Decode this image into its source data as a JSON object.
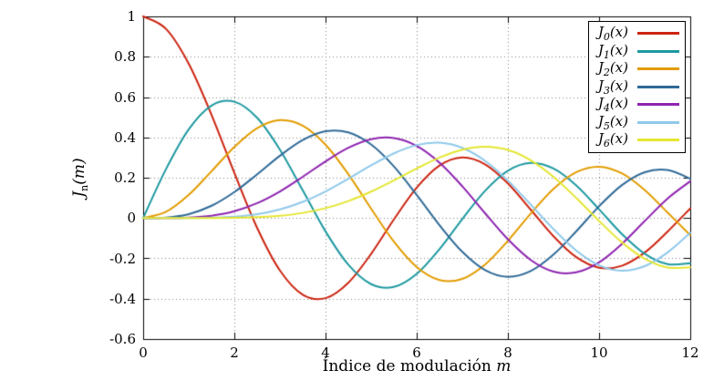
{
  "chart_data": {
    "type": "line",
    "title": "",
    "xlabel": "Índice de modulación m",
    "ylabel": "J_n(m)",
    "xlim": [
      0,
      12
    ],
    "ylim": [
      -0.6,
      1
    ],
    "grid": "dotted",
    "legend_position": "top-right",
    "xticks": {
      "values": [
        0,
        2,
        4,
        6,
        8,
        10,
        12
      ],
      "labels": [
        "0",
        "2",
        "4",
        "6",
        "8",
        "10",
        "12"
      ]
    },
    "yticks": {
      "values": [
        1,
        0.8,
        0.6,
        0.4,
        0.2,
        0,
        -0.2,
        -0.4,
        -0.6
      ],
      "labels": [
        "1",
        "0.8",
        "0.6",
        "0.4",
        "0.2",
        "0",
        "-0.2",
        "-0.4",
        "-0.6"
      ]
    },
    "x": [
      0,
      0.5,
      1,
      1.5,
      2,
      2.5,
      3,
      3.5,
      4,
      4.5,
      5,
      5.5,
      6,
      6.5,
      7,
      7.5,
      8,
      8.5,
      9,
      9.5,
      10,
      10.5,
      11,
      11.5,
      12
    ],
    "series": [
      {
        "name": "J_0(x)",
        "base": "J",
        "sub": "0",
        "rest": "(x)",
        "color": "#cc2512",
        "values": [
          1,
          0.9385,
          0.7652,
          0.5118,
          0.2239,
          -0.0484,
          -0.2601,
          -0.3801,
          -0.3971,
          -0.3205,
          -0.1776,
          -0.0068,
          0.1506,
          0.2601,
          0.3001,
          0.2663,
          0.1717,
          0.0419,
          -0.0903,
          -0.1939,
          -0.2459,
          -0.2366,
          -0.1712,
          -0.0677,
          0.0477
        ]
      },
      {
        "name": "J_1(x)",
        "base": "J",
        "sub": "1",
        "rest": "(x)",
        "color": "#1e99a0",
        "values": [
          0,
          0.2423,
          0.4401,
          0.5579,
          0.5767,
          0.4971,
          0.3391,
          0.1374,
          -0.066,
          -0.2311,
          -0.3276,
          -0.3414,
          -0.2767,
          -0.1538,
          -0.0047,
          0.1352,
          0.2346,
          0.2731,
          0.2453,
          0.1613,
          0.0435,
          -0.0789,
          -0.1768,
          -0.2284,
          -0.2234
        ]
      },
      {
        "name": "J_2(x)",
        "base": "J",
        "sub": "2",
        "rest": "(x)",
        "color": "#e29c00",
        "values": [
          0,
          0.0306,
          0.1149,
          0.2321,
          0.3528,
          0.4461,
          0.4861,
          0.4586,
          0.3641,
          0.2178,
          0.0466,
          -0.1173,
          -0.2429,
          -0.3074,
          -0.3014,
          -0.2303,
          -0.113,
          0.0223,
          0.1448,
          0.2279,
          0.2546,
          0.2216,
          0.139,
          0.0279,
          -0.0849
        ]
      },
      {
        "name": "J_3(x)",
        "base": "J",
        "sub": "3",
        "rest": "(x)",
        "color": "#2f6a97",
        "values": [
          0,
          0.0026,
          0.0196,
          0.061,
          0.1289,
          0.2166,
          0.3091,
          0.3868,
          0.4302,
          0.4247,
          0.3648,
          0.2561,
          0.1148,
          -0.0353,
          -0.1676,
          -0.2581,
          -0.2911,
          -0.2626,
          -0.1809,
          -0.0653,
          0.0584,
          0.1633,
          0.2273,
          0.2381,
          0.1951
        ]
      },
      {
        "name": "J_4(x)",
        "base": "J",
        "sub": "4",
        "rest": "(x)",
        "color": "#8e24b0",
        "values": [
          0,
          0.0002,
          0.0025,
          0.0118,
          0.034,
          0.0738,
          0.132,
          0.2044,
          0.2811,
          0.3484,
          0.3912,
          0.3967,
          0.3576,
          0.2748,
          0.1578,
          0.0238,
          -0.1054,
          -0.2077,
          -0.2655,
          -0.2691,
          -0.2196,
          -0.1283,
          -0.015,
          0.0963,
          0.1825
        ]
      },
      {
        "name": "J_5(x)",
        "base": "J",
        "sub": "5",
        "rest": "(x)",
        "color": "#8fc9ea",
        "values": [
          0,
          0,
          0.0002,
          0.0018,
          0.007,
          0.0195,
          0.043,
          0.0804,
          0.1321,
          0.1947,
          0.2611,
          0.3209,
          0.3621,
          0.3736,
          0.3479,
          0.2835,
          0.1858,
          0.0671,
          -0.055,
          -0.1613,
          -0.2341,
          -0.2611,
          -0.2383,
          -0.1711,
          -0.0735
        ]
      },
      {
        "name": "J_6(x)",
        "base": "J",
        "sub": "6",
        "rest": "(x)",
        "color": "#e4e632",
        "values": [
          0,
          0,
          0,
          0.0002,
          0.0012,
          0.0042,
          0.0114,
          0.0254,
          0.0491,
          0.0843,
          0.131,
          0.1868,
          0.2458,
          0.2999,
          0.3392,
          0.3541,
          0.3376,
          0.2867,
          0.2043,
          0.0993,
          -0.0145,
          -0.1203,
          -0.2016,
          -0.2453,
          -0.2437
        ]
      }
    ]
  },
  "labels": {
    "xlabel": {
      "text": "Índice de modulación",
      "var": "m"
    },
    "ylabel": {
      "base": "J",
      "sub": "n",
      "rest": "(m)"
    }
  },
  "style": {
    "grid_color": "#808080",
    "axis_color": "#000000",
    "background": "#ffffff"
  }
}
